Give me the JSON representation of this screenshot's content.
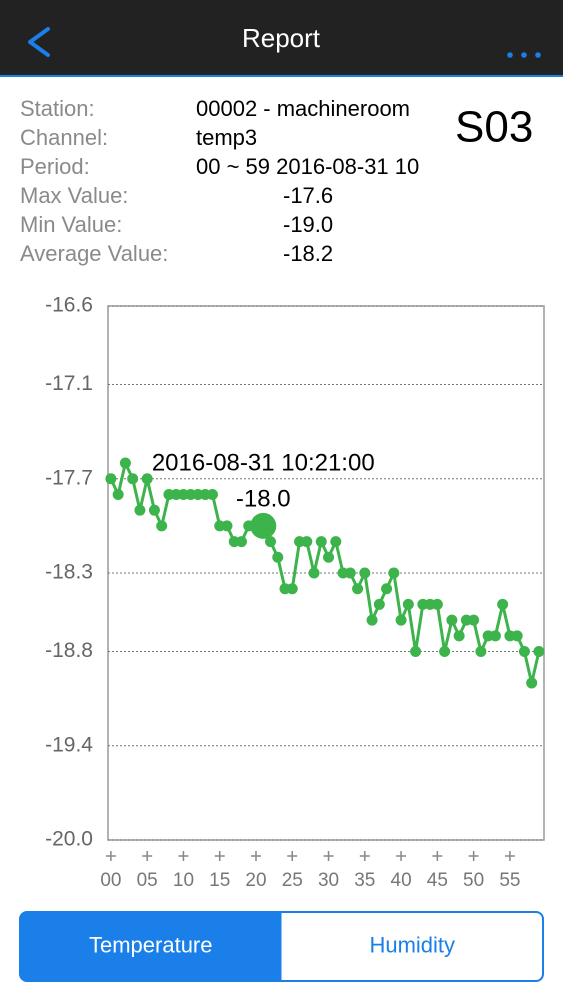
{
  "header": {
    "title": "Report"
  },
  "badge": "S03",
  "info": [
    {
      "label": "Station:",
      "value": "00002 - machineroom"
    },
    {
      "label": "Channel:",
      "value": "temp3"
    },
    {
      "label": "Period:",
      "value": "00 ~ 59 2016-08-31 10"
    },
    {
      "label": "Max Value:",
      "value": "-17.6"
    },
    {
      "label": "Min Value:",
      "value": "-19.0"
    },
    {
      "label": "Average Value:",
      "value": "-18.2"
    }
  ],
  "chart_data": {
    "type": "line",
    "color": "#3cb44b",
    "x": [
      0,
      1,
      2,
      3,
      4,
      5,
      6,
      7,
      8,
      9,
      10,
      11,
      12,
      13,
      14,
      15,
      16,
      17,
      18,
      19,
      20,
      21,
      22,
      23,
      24,
      25,
      26,
      27,
      28,
      29,
      30,
      31,
      32,
      33,
      34,
      35,
      36,
      37,
      38,
      39,
      40,
      41,
      42,
      43,
      44,
      45,
      46,
      47,
      48,
      49,
      50,
      51,
      52,
      53,
      54,
      55,
      56,
      57,
      58,
      59
    ],
    "values": [
      -17.7,
      -17.8,
      -17.6,
      -17.7,
      -17.9,
      -17.7,
      -17.9,
      -18.0,
      -17.8,
      -17.8,
      -17.8,
      -17.8,
      -17.8,
      -17.8,
      -17.8,
      -18.0,
      -18.0,
      -18.1,
      -18.1,
      -18.0,
      -18.0,
      -18.0,
      -18.1,
      -18.2,
      -18.4,
      -18.4,
      -18.1,
      -18.1,
      -18.3,
      -18.1,
      -18.2,
      -18.1,
      -18.3,
      -18.3,
      -18.4,
      -18.3,
      -18.6,
      -18.5,
      -18.4,
      -18.3,
      -18.6,
      -18.5,
      -18.8,
      -18.5,
      -18.5,
      -18.5,
      -18.8,
      -18.6,
      -18.7,
      -18.6,
      -18.6,
      -18.8,
      -18.7,
      -18.7,
      -18.5,
      -18.7,
      -18.7,
      -18.8,
      -19.0,
      -18.8
    ],
    "xlim": [
      -0.4,
      59.7
    ],
    "xticks": [
      {
        "value": 0,
        "label": "00"
      },
      {
        "value": 5,
        "label": "05"
      },
      10,
      15,
      20,
      25,
      30,
      35,
      40,
      45,
      50,
      55
    ],
    "ylim": [
      -20.0,
      -16.6
    ],
    "yticks": [
      {
        "value": -20.0,
        "label": "-20.0"
      },
      -19.4,
      -18.8,
      -18.3,
      -17.7,
      -17.1,
      -16.6
    ],
    "grid": true,
    "selected": {
      "x": 21,
      "label": "2016-08-31 10:21:00",
      "value_label": "-18.0"
    }
  },
  "tabs": [
    {
      "label": "Temperature",
      "active": true
    },
    {
      "label": "Humidity",
      "active": false
    }
  ]
}
